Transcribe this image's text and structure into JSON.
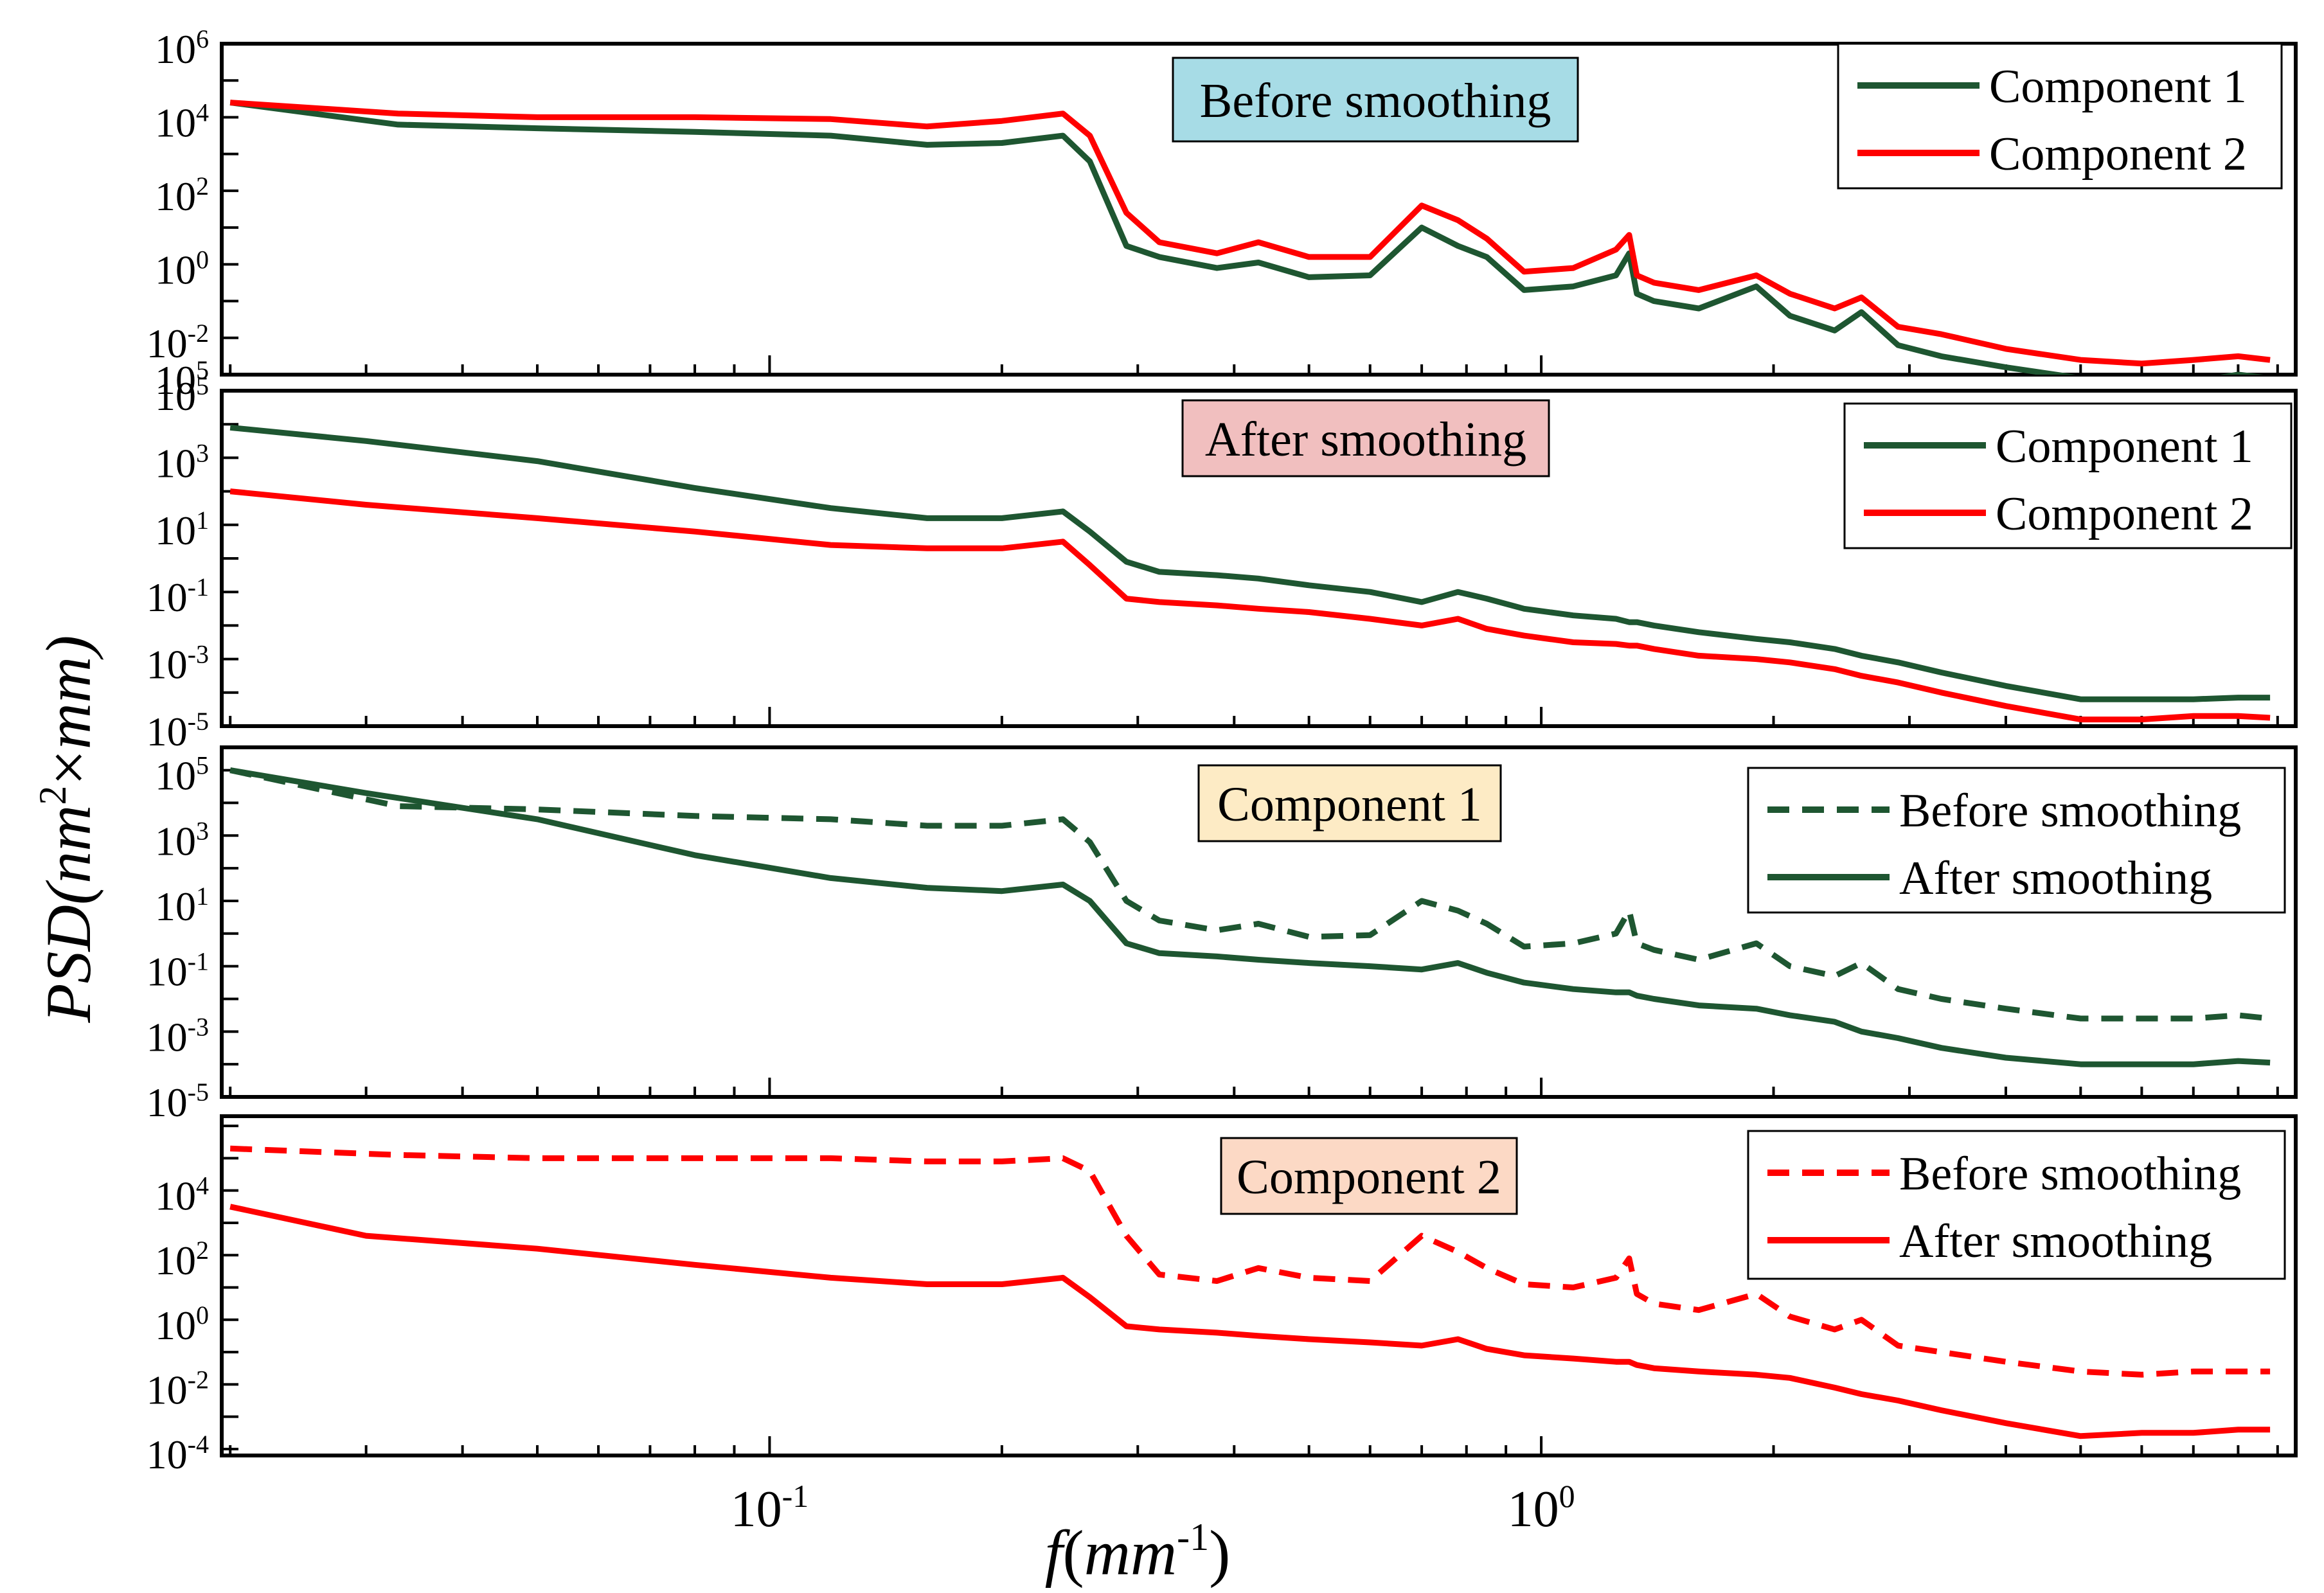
{
  "figure": {
    "ylabel": "PSD(nm²×mm)",
    "ylabel_main": "PSD(",
    "ylabel_nm": "nm",
    "ylabel_sup": "2",
    "ylabel_times": "×",
    "ylabel_mm": "mm",
    "ylabel_close": ")",
    "xlabel": "f(mm⁻¹)",
    "xlabel_f": "f",
    "xlabel_open": "(",
    "xlabel_mm": "mm",
    "xlabel_sup": "-1",
    "xlabel_close": ")",
    "x_tick_labels": [
      {
        "value": 0.1,
        "base": "10",
        "exp": "-1"
      },
      {
        "value": 1,
        "base": "10",
        "exp": "0"
      }
    ],
    "xlim": [
      0.0195,
      9.5
    ],
    "colors": {
      "component1": "#1e5631",
      "component2": "#ff0000"
    }
  },
  "chart_data": [
    {
      "type": "line",
      "title": "Before smoothing",
      "title_bg": "#a7dce6",
      "ylim_exp": [
        -3,
        6
      ],
      "y_tick_exps": [
        "-2",
        "0",
        "2",
        "4",
        "6"
      ],
      "y_tick_extra": {
        "base": "10",
        "exp": "5"
      },
      "legend": [
        "Component 1",
        "Component 2"
      ],
      "series": [
        {
          "name": "Component 1",
          "color": "#1e5631",
          "dash": "none",
          "x": [
            0.02,
            0.033,
            0.05,
            0.08,
            0.12,
            0.16,
            0.2,
            0.24,
            0.26,
            0.29,
            0.32,
            0.38,
            0.43,
            0.5,
            0.6,
            0.7,
            0.78,
            0.85,
            0.95,
            1.1,
            1.25,
            1.3,
            1.33,
            1.4,
            1.6,
            1.9,
            2.1,
            2.4,
            2.6,
            2.9,
            3.3,
            4,
            5,
            6,
            7,
            8,
            8.8
          ],
          "y_exp": [
            4.4,
            3.8,
            3.7,
            3.6,
            3.5,
            3.25,
            3.3,
            3.5,
            2.8,
            0.5,
            0.2,
            -0.1,
            0.05,
            -0.35,
            -0.3,
            1.0,
            0.5,
            0.2,
            -0.7,
            -0.6,
            -0.3,
            0.3,
            -0.8,
            -1.0,
            -1.2,
            -0.6,
            -1.4,
            -1.8,
            -1.3,
            -2.2,
            -2.5,
            -2.8,
            -3.1,
            -3.2,
            -3.2,
            -3.0,
            -3.1
          ]
        },
        {
          "name": "Component 2",
          "color": "#ff0000",
          "dash": "none",
          "x": [
            0.02,
            0.033,
            0.05,
            0.08,
            0.12,
            0.16,
            0.2,
            0.24,
            0.26,
            0.29,
            0.32,
            0.38,
            0.43,
            0.5,
            0.6,
            0.7,
            0.78,
            0.85,
            0.95,
            1.1,
            1.25,
            1.3,
            1.33,
            1.4,
            1.6,
            1.9,
            2.1,
            2.4,
            2.6,
            2.9,
            3.3,
            4,
            5,
            6,
            7,
            8,
            8.8
          ],
          "y_exp": [
            4.4,
            4.1,
            4.0,
            4.0,
            3.95,
            3.75,
            3.9,
            4.1,
            3.5,
            1.4,
            0.6,
            0.3,
            0.6,
            0.2,
            0.2,
            1.6,
            1.2,
            0.7,
            -0.2,
            -0.1,
            0.4,
            0.8,
            -0.3,
            -0.5,
            -0.7,
            -0.3,
            -0.8,
            -1.2,
            -0.9,
            -1.7,
            -1.9,
            -2.3,
            -2.6,
            -2.7,
            -2.6,
            -2.5,
            -2.6
          ]
        }
      ]
    },
    {
      "type": "line",
      "title": "After smoothing",
      "title_bg": "#f1bfbf",
      "ylim_exp": [
        -5,
        5
      ],
      "y_tick_exps": [
        "-5",
        "-3",
        "-1",
        "1",
        "3",
        "5"
      ],
      "legend": [
        "Component 1",
        "Component 2"
      ],
      "series": [
        {
          "name": "Component 1",
          "color": "#1e5631",
          "dash": "none",
          "x": [
            0.02,
            0.03,
            0.05,
            0.08,
            0.12,
            0.16,
            0.2,
            0.24,
            0.26,
            0.29,
            0.32,
            0.38,
            0.43,
            0.5,
            0.6,
            0.7,
            0.78,
            0.85,
            0.95,
            1.1,
            1.25,
            1.3,
            1.33,
            1.4,
            1.6,
            1.9,
            2.1,
            2.4,
            2.6,
            2.9,
            3.3,
            4,
            5,
            6,
            7,
            8,
            8.8
          ],
          "y_exp": [
            3.9,
            3.5,
            2.9,
            2.1,
            1.5,
            1.2,
            1.2,
            1.4,
            0.8,
            -0.1,
            -0.4,
            -0.5,
            -0.6,
            -0.8,
            -1.0,
            -1.3,
            -1.0,
            -1.2,
            -1.5,
            -1.7,
            -1.8,
            -1.9,
            -1.9,
            -2.0,
            -2.2,
            -2.4,
            -2.5,
            -2.7,
            -2.9,
            -3.1,
            -3.4,
            -3.8,
            -4.2,
            -4.2,
            -4.2,
            -4.15,
            -4.15
          ]
        },
        {
          "name": "Component 2",
          "color": "#ff0000",
          "dash": "none",
          "x": [
            0.02,
            0.03,
            0.05,
            0.08,
            0.12,
            0.16,
            0.2,
            0.24,
            0.26,
            0.29,
            0.32,
            0.38,
            0.43,
            0.5,
            0.6,
            0.7,
            0.78,
            0.85,
            0.95,
            1.1,
            1.25,
            1.3,
            1.33,
            1.4,
            1.6,
            1.9,
            2.1,
            2.4,
            2.6,
            2.9,
            3.3,
            4,
            5,
            6,
            7,
            8,
            8.8
          ],
          "y_exp": [
            2.0,
            1.6,
            1.2,
            0.8,
            0.4,
            0.3,
            0.3,
            0.5,
            -0.2,
            -1.2,
            -1.3,
            -1.4,
            -1.5,
            -1.6,
            -1.8,
            -2.0,
            -1.8,
            -2.1,
            -2.3,
            -2.5,
            -2.55,
            -2.6,
            -2.6,
            -2.7,
            -2.9,
            -3.0,
            -3.1,
            -3.3,
            -3.5,
            -3.7,
            -4.0,
            -4.4,
            -4.8,
            -4.8,
            -4.7,
            -4.7,
            -4.75
          ]
        }
      ]
    },
    {
      "type": "line",
      "title": "Component 1",
      "title_bg": "#fdebc5",
      "ylim_exp": [
        -5,
        5.7
      ],
      "y_tick_exps": [
        "-5",
        "-3",
        "-1",
        "1",
        "3",
        "5"
      ],
      "legend": [
        "Before smoothing",
        "After smoothing"
      ],
      "series": [
        {
          "name": "Before smoothing",
          "color": "#1e5631",
          "dash": "dashed",
          "x": [
            0.02,
            0.033,
            0.05,
            0.08,
            0.12,
            0.16,
            0.2,
            0.24,
            0.26,
            0.29,
            0.32,
            0.38,
            0.43,
            0.5,
            0.6,
            0.7,
            0.78,
            0.85,
            0.95,
            1.1,
            1.25,
            1.3,
            1.33,
            1.4,
            1.6,
            1.9,
            2.1,
            2.4,
            2.6,
            2.9,
            3.3,
            4,
            5,
            6,
            7,
            8,
            8.8
          ],
          "y_exp": [
            5.0,
            3.9,
            3.8,
            3.6,
            3.5,
            3.3,
            3.3,
            3.5,
            2.8,
            1.0,
            0.4,
            0.1,
            0.3,
            -0.1,
            -0.05,
            1.0,
            0.7,
            0.3,
            -0.4,
            -0.3,
            0.0,
            0.7,
            -0.3,
            -0.5,
            -0.8,
            -0.3,
            -1.0,
            -1.3,
            -0.9,
            -1.7,
            -2.0,
            -2.3,
            -2.6,
            -2.6,
            -2.6,
            -2.5,
            -2.6
          ]
        },
        {
          "name": "After smoothing",
          "color": "#1e5631",
          "dash": "none",
          "x": [
            0.02,
            0.03,
            0.05,
            0.08,
            0.12,
            0.16,
            0.2,
            0.24,
            0.26,
            0.29,
            0.32,
            0.38,
            0.43,
            0.5,
            0.6,
            0.7,
            0.78,
            0.85,
            0.95,
            1.1,
            1.25,
            1.3,
            1.33,
            1.4,
            1.6,
            1.9,
            2.1,
            2.4,
            2.6,
            2.9,
            3.3,
            4,
            5,
            6,
            7,
            8,
            8.8
          ],
          "y_exp": [
            5.0,
            4.3,
            3.5,
            2.4,
            1.7,
            1.4,
            1.3,
            1.5,
            1.0,
            -0.3,
            -0.6,
            -0.7,
            -0.8,
            -0.9,
            -1.0,
            -1.1,
            -0.9,
            -1.2,
            -1.5,
            -1.7,
            -1.8,
            -1.8,
            -1.9,
            -2.0,
            -2.2,
            -2.3,
            -2.5,
            -2.7,
            -3.0,
            -3.2,
            -3.5,
            -3.8,
            -4.0,
            -4.0,
            -4.0,
            -3.9,
            -3.95
          ]
        }
      ]
    },
    {
      "type": "line",
      "title": "Component 2",
      "title_bg": "#fcd9c5",
      "ylim_exp": [
        -4.2,
        6.3
      ],
      "y_tick_exps": [
        "-4",
        "-2",
        "0",
        "2",
        "4"
      ],
      "legend": [
        "Before smoothing",
        "After smoothing"
      ],
      "series": [
        {
          "name": "Before smoothing",
          "color": "#ff0000",
          "dash": "dashed",
          "x": [
            0.02,
            0.033,
            0.05,
            0.08,
            0.12,
            0.16,
            0.2,
            0.24,
            0.26,
            0.29,
            0.32,
            0.38,
            0.43,
            0.5,
            0.6,
            0.7,
            0.78,
            0.85,
            0.95,
            1.1,
            1.25,
            1.3,
            1.33,
            1.4,
            1.6,
            1.9,
            2.1,
            2.4,
            2.6,
            2.9,
            3.3,
            4,
            5,
            6,
            7,
            8,
            8.8
          ],
          "y_exp": [
            5.3,
            5.1,
            5.0,
            5.0,
            5.0,
            4.9,
            4.9,
            5.0,
            4.6,
            2.6,
            1.4,
            1.2,
            1.6,
            1.3,
            1.2,
            2.6,
            2.1,
            1.6,
            1.1,
            1.0,
            1.3,
            1.9,
            0.8,
            0.5,
            0.3,
            0.8,
            0.1,
            -0.3,
            0.0,
            -0.8,
            -1.0,
            -1.3,
            -1.6,
            -1.7,
            -1.6,
            -1.6,
            -1.6
          ]
        },
        {
          "name": "After smoothing",
          "color": "#ff0000",
          "dash": "none",
          "x": [
            0.02,
            0.03,
            0.05,
            0.08,
            0.12,
            0.16,
            0.2,
            0.24,
            0.26,
            0.29,
            0.32,
            0.38,
            0.43,
            0.5,
            0.6,
            0.7,
            0.78,
            0.85,
            0.95,
            1.1,
            1.25,
            1.3,
            1.33,
            1.4,
            1.6,
            1.9,
            2.1,
            2.4,
            2.6,
            2.9,
            3.3,
            4,
            5,
            6,
            7,
            8,
            8.8
          ],
          "y_exp": [
            3.5,
            2.6,
            2.2,
            1.7,
            1.3,
            1.1,
            1.1,
            1.3,
            0.7,
            -0.2,
            -0.3,
            -0.4,
            -0.5,
            -0.6,
            -0.7,
            -0.8,
            -0.6,
            -0.9,
            -1.1,
            -1.2,
            -1.3,
            -1.3,
            -1.4,
            -1.5,
            -1.6,
            -1.7,
            -1.8,
            -2.1,
            -2.3,
            -2.5,
            -2.8,
            -3.2,
            -3.6,
            -3.5,
            -3.5,
            -3.4,
            -3.4
          ]
        }
      ]
    }
  ]
}
